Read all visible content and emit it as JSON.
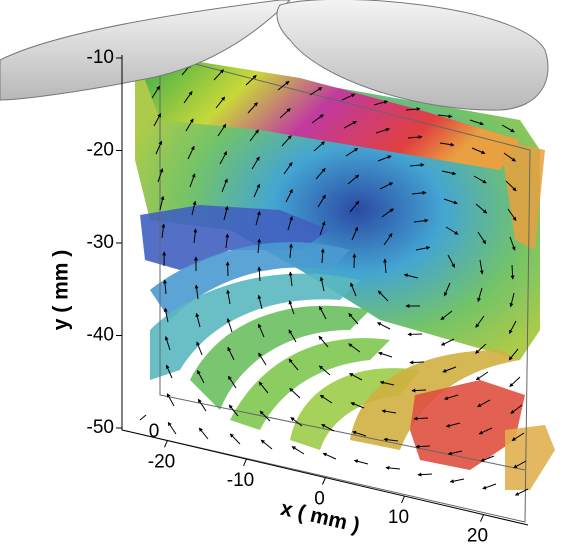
{
  "chart_data": {
    "type": "isosurface3d",
    "xlabel": "x ( mm )",
    "ylabel": "y ( mm )",
    "xlim": [
      -25,
      25
    ],
    "xticks": [
      -20,
      -10,
      0,
      10,
      20
    ],
    "ylim": [
      -50,
      -10
    ],
    "yticks": [
      -10,
      -20,
      -30,
      -40,
      -50
    ],
    "zticks": [
      0
    ]
  }
}
